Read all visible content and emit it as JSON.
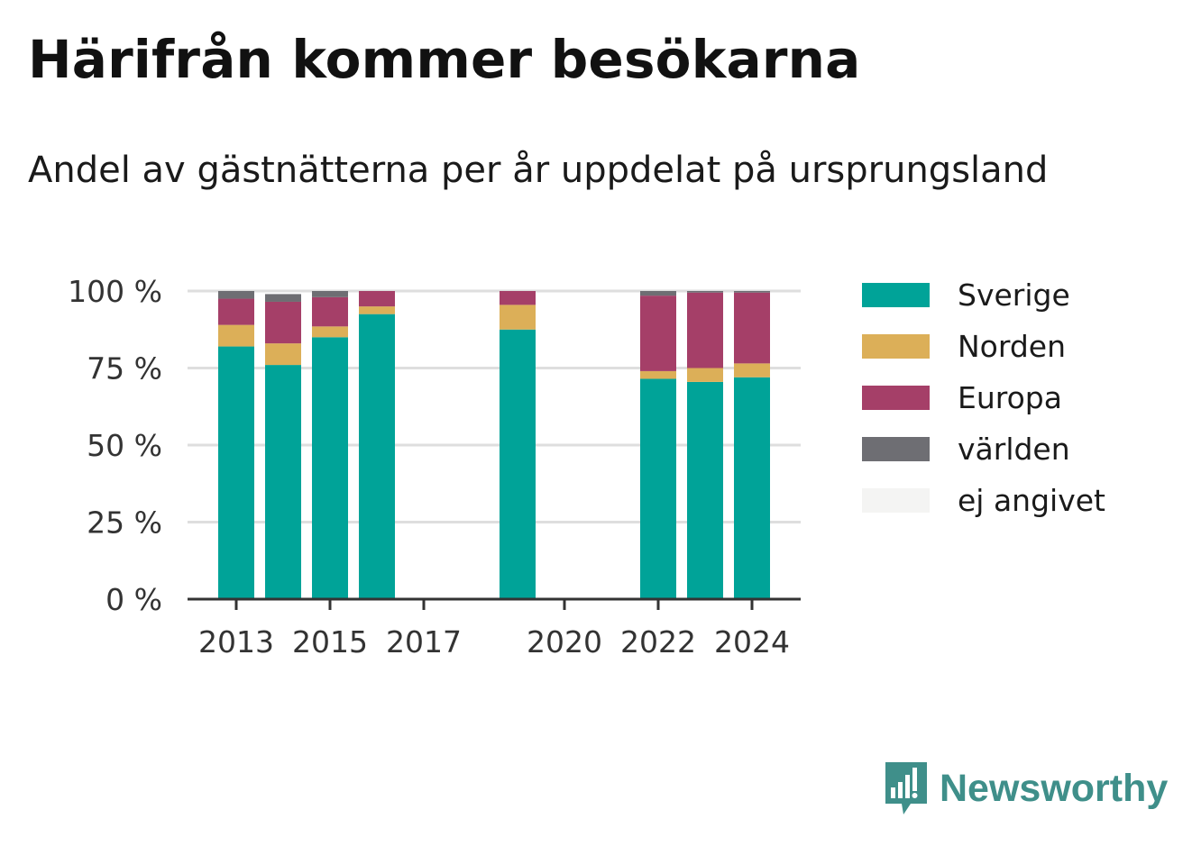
{
  "title": "Härifrån kommer besökarna",
  "subtitle": "Andel av gästnätterna per år uppdelat på ursprungsland",
  "brand": {
    "name": "Newsworthy",
    "icon": "bar-chart-speech-bubble-icon",
    "color": "#3f8f8a"
  },
  "chart_data": {
    "type": "bar",
    "stacked": true,
    "categories": [
      "2013",
      "2014",
      "2015",
      "2016",
      "2017",
      "2018",
      "2019",
      "2020",
      "2021",
      "2022",
      "2023",
      "2024"
    ],
    "x_tick_labels": [
      "2013",
      "2015",
      "2017",
      "2020",
      "2022",
      "2024"
    ],
    "y_ticks": [
      "0 %",
      "25 %",
      "50 %",
      "75 %",
      "100 %"
    ],
    "ylim": [
      0,
      100
    ],
    "grid": true,
    "legend_position": "right",
    "series": [
      {
        "name": "Sverige",
        "color": "#00a398",
        "values": [
          82,
          76,
          85,
          92.5,
          null,
          null,
          87.5,
          null,
          null,
          71.5,
          70.5,
          72
        ]
      },
      {
        "name": "Norden",
        "color": "#dcaf58",
        "values": [
          7,
          7,
          3.5,
          2.5,
          null,
          null,
          8,
          null,
          null,
          2.5,
          4.5,
          4.5
        ]
      },
      {
        "name": "Europa",
        "color": "#a53f68",
        "values": [
          8.5,
          13.5,
          9.5,
          5,
          null,
          null,
          4.5,
          null,
          null,
          24.5,
          24.5,
          23
        ]
      },
      {
        "name": "världen",
        "color": "#6e6e73",
        "values": [
          2.5,
          2.5,
          2,
          0,
          null,
          null,
          0,
          null,
          null,
          1.5,
          0.5,
          0.5
        ]
      },
      {
        "name": "ej angivet",
        "color": "#f4f4f3",
        "values": [
          0,
          0,
          0,
          0,
          null,
          null,
          0,
          null,
          null,
          0,
          0,
          0
        ]
      }
    ]
  }
}
